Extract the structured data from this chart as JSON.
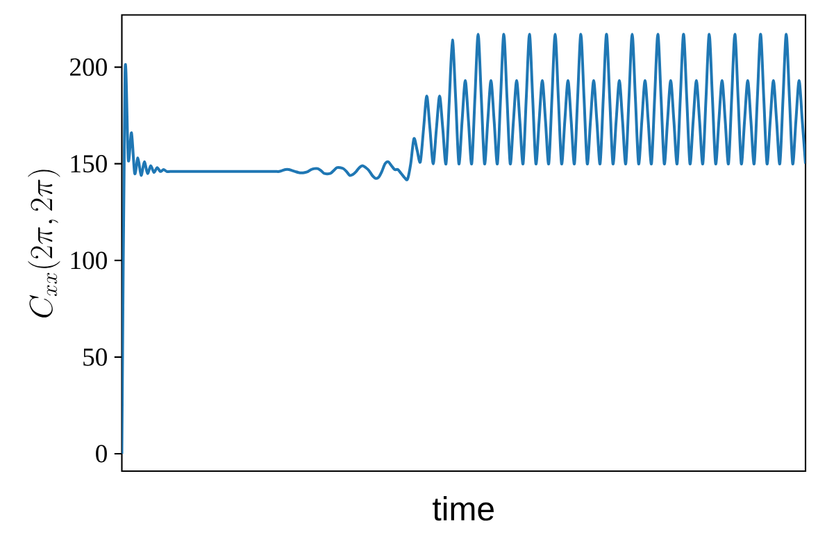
{
  "chart_data": {
    "type": "line",
    "xlabel": "time",
    "ylabel": "C_{xx}(2\\pi,2\\pi)",
    "color": "#1f77b4",
    "ylim": [
      -9,
      227
    ],
    "yticks": [
      0,
      50,
      100,
      150,
      200
    ],
    "categories": [
      null,
      null,
      null,
      null,
      null,
      null,
      null,
      null,
      null,
      null,
      null,
      null,
      null,
      null,
      null,
      null,
      null,
      null,
      null,
      null,
      null,
      null,
      null,
      null,
      null,
      null,
      null,
      null,
      null,
      null,
      null,
      null,
      null,
      null,
      null,
      null,
      null,
      null,
      null,
      null,
      null,
      null,
      null,
      null,
      null,
      null,
      null,
      null,
      null,
      null,
      null,
      null,
      null,
      null,
      null,
      null,
      null,
      null,
      null,
      null,
      null,
      null,
      null,
      null,
      null,
      null,
      null,
      null,
      null,
      null,
      null,
      null,
      null,
      null,
      null,
      null,
      null,
      null,
      null,
      null,
      null,
      null,
      null,
      null,
      null,
      null,
      null,
      null,
      null,
      null,
      null,
      null,
      null,
      null,
      null,
      null,
      null,
      null,
      null,
      null,
      null,
      null,
      null,
      null,
      null,
      null,
      null,
      null,
      null,
      null,
      null,
      null,
      null,
      null,
      null,
      null,
      null,
      null,
      null,
      null,
      null,
      null,
      null,
      null,
      null,
      null,
      null,
      null,
      null,
      null,
      null,
      null,
      null,
      null,
      null,
      null,
      null,
      null,
      null,
      null,
      null,
      null,
      null,
      null,
      null,
      null,
      null,
      null,
      null,
      null,
      null,
      null,
      null,
      null,
      null,
      null,
      null,
      null,
      null,
      null,
      null,
      null,
      null,
      null,
      null,
      null,
      null,
      null,
      null,
      null,
      null,
      null,
      null,
      null,
      null,
      null,
      null,
      null,
      null,
      null,
      null,
      null,
      null,
      null,
      null,
      null,
      null,
      null,
      null,
      null,
      null,
      null,
      null,
      null,
      null,
      null,
      null,
      null,
      null,
      null,
      null,
      null,
      null,
      null,
      null,
      null,
      null,
      null,
      null,
      null,
      null,
      null,
      null,
      null
    ],
    "values": [
      0,
      197,
      152,
      166,
      145,
      153,
      144,
      151,
      145,
      149,
      145.5,
      148,
      146,
      147,
      146,
      146,
      146,
      146,
      146,
      146,
      146,
      146,
      146,
      146,
      146,
      146,
      146,
      146,
      146,
      146,
      146,
      146,
      146,
      146,
      146,
      146,
      146,
      146,
      146,
      146,
      146,
      146,
      146,
      146,
      146,
      146,
      146,
      146,
      146,
      146,
      146.5,
      147,
      147,
      146.5,
      146,
      145.5,
      145.3,
      145.5,
      146,
      147,
      147.5,
      147.5,
      146.5,
      145,
      144.8,
      145,
      146.5,
      148,
      148,
      147.5,
      146,
      144,
      144.5,
      146,
      148,
      149,
      148,
      146.5,
      144,
      142.5,
      143,
      146,
      150,
      151,
      149,
      147,
      147,
      145,
      143,
      142,
      150,
      163,
      157,
      151,
      168,
      185,
      168,
      150,
      168,
      185,
      168,
      150,
      182,
      214,
      184,
      150,
      172,
      193,
      172,
      150,
      184,
      217,
      184,
      150,
      172,
      193,
      172,
      150,
      184,
      217,
      184,
      150,
      172,
      193,
      172,
      150,
      184,
      217,
      184,
      150,
      172,
      193,
      172,
      150,
      184,
      217,
      184,
      150,
      172,
      193,
      172,
      150,
      184,
      217,
      184,
      150,
      172,
      193,
      172,
      150,
      184,
      217,
      184,
      150,
      172,
      193,
      172,
      150,
      184,
      217,
      184,
      150,
      172,
      193,
      172,
      150,
      184,
      217,
      184,
      150,
      172,
      193,
      172,
      150,
      184,
      217,
      184,
      150,
      172,
      193,
      172,
      150,
      184,
      217,
      184,
      150,
      172,
      193,
      172,
      150,
      184,
      217,
      184,
      150,
      172,
      193,
      172,
      150,
      184,
      217,
      184,
      150,
      172,
      193,
      172,
      150,
      184,
      217,
      184,
      150,
      172,
      193,
      172,
      150
    ]
  }
}
